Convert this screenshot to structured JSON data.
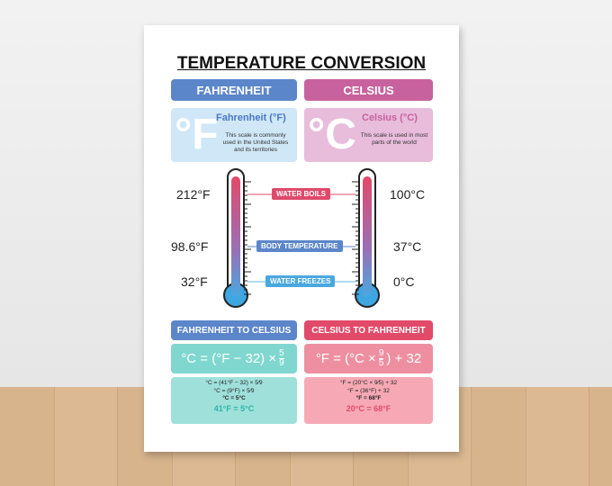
{
  "title": "TEMPERATURE CONVERSION",
  "scales": [
    {
      "header": "FAHRENHEIT",
      "symbol": "°F",
      "name": "Fahrenheit (°F)",
      "description": "This scale is commonly used in the United States and its territories",
      "readings": [
        "212°F",
        "98.6°F",
        "32°F"
      ]
    },
    {
      "header": "CELSIUS",
      "symbol": "°C",
      "name": "Celsius (°C)",
      "description": "This scale is used in most parts of the world",
      "readings": [
        "100°C",
        "37°C",
        "0°C"
      ]
    }
  ],
  "markers": [
    "WATER BOILS",
    "BODY TEMPERATURE",
    "WATER FREEZES"
  ],
  "conversions": [
    {
      "header": "FAHRENHEIT TO CELSIUS",
      "formula_start": "°C = (°F − 32) ×",
      "numerator": "5",
      "denominator": "9",
      "steps": [
        "°C = (41°F − 32) × 5⁄9",
        "°C = (9°F) × 5⁄9",
        "°C = 5°C"
      ],
      "result": "41°F = 5°C"
    },
    {
      "header": "CELSIUS TO FAHRENHEIT",
      "formula_start": "°F = (°C ×",
      "numerator": "9",
      "denominator": "5",
      "formula_end": ") + 32",
      "steps": [
        "°F = (20°C × 9⁄5) + 32",
        "°F = (36°F) + 32",
        "°F = 68°F"
      ],
      "result": "20°C = 68°F"
    }
  ]
}
